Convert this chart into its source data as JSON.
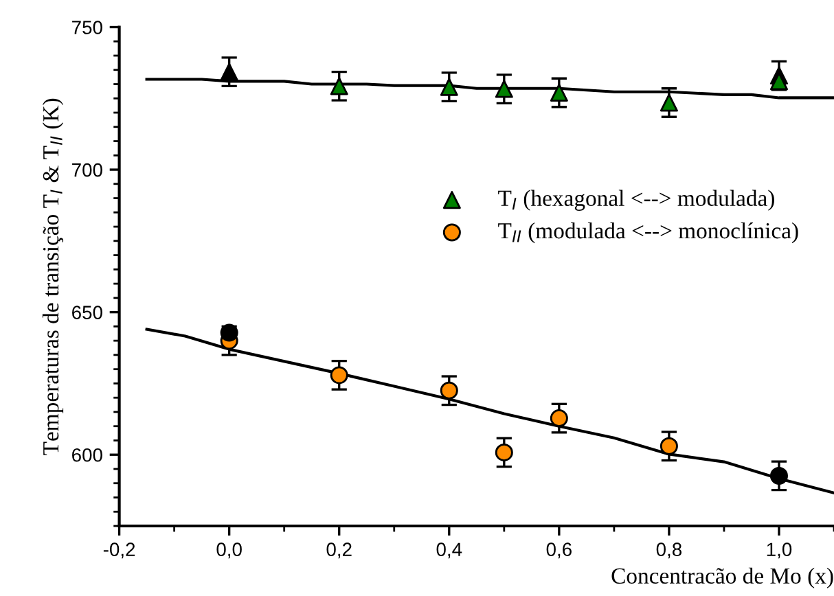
{
  "chart_data": {
    "type": "scatter",
    "xlabel": "Concentracão de Mo (x)",
    "ylabel": "Temperaturas de transição T$_{I}$ & T$_{II}$ (K)",
    "xlim": [
      -0.2,
      1.1
    ],
    "xticks": [
      {
        "value": -0.2,
        "label": "-0,2"
      },
      {
        "value": 0.0,
        "label": "0,0"
      },
      {
        "value": 0.2,
        "label": "0,2"
      },
      {
        "value": 0.4,
        "label": "0,4"
      },
      {
        "value": 0.6,
        "label": "0,6"
      },
      {
        "value": 0.8,
        "label": "0,8"
      },
      {
        "value": 1.0,
        "label": "1,0"
      }
    ],
    "ylim": [
      575,
      750
    ],
    "yticks": [
      600,
      650,
      700,
      750
    ],
    "grid": false,
    "legend": "right",
    "series": [
      {
        "type": "line",
        "color": "#000000",
        "marker": "none",
        "line_style": "solid",
        "x": [
          -0.15,
          -0.05,
          0.0,
          0.1,
          0.15,
          0.25,
          0.3,
          0.4,
          0.45,
          0.6,
          0.7,
          0.8,
          0.9,
          0.95,
          1.0,
          1.1
        ],
        "values": [
          731.7,
          731.7,
          731,
          731,
          730,
          730,
          729.5,
          729.5,
          728.5,
          728.5,
          727.3,
          727.3,
          726.3,
          726.3,
          725.2,
          725.2
        ]
      },
      {
        "type": "line",
        "color": "#000000",
        "marker": "none",
        "line_style": "solid",
        "x": [
          -0.15,
          -0.08,
          0.0,
          0.2,
          0.3,
          0.4,
          0.5,
          0.6,
          0.7,
          0.8,
          0.9,
          1.0,
          1.1
        ],
        "values": [
          644,
          641.6,
          637,
          628.5,
          624,
          619.5,
          614.4,
          610,
          605.9,
          600.2,
          597.5,
          591.6,
          586.6
        ]
      },
      {
        "color": "#000000",
        "marker": "triangle",
        "x": [
          0.0,
          1.0
        ],
        "values": [
          734.3,
          733
        ],
        "errors": [
          5,
          5
        ]
      },
      {
        "name": "T$_{I}$ (hexagonal <--> modulada)",
        "color": "#008000",
        "marker": "triangle",
        "x": [
          0.2,
          0.4,
          0.5,
          0.6,
          0.8,
          1.0
        ],
        "values": [
          729.3,
          729,
          728.3,
          727,
          723.5,
          731
        ],
        "errors": [
          5,
          5,
          5,
          5,
          5,
          null
        ]
      },
      {
        "name": "T$_{II}$ (modulada <--> monoclínica)",
        "color": "#ff8c00",
        "marker": "circle",
        "x": [
          0.0,
          0.2,
          0.4,
          0.5,
          0.6,
          0.8
        ],
        "values": [
          640,
          627.9,
          622.5,
          600.8,
          612.8,
          603
        ],
        "errors": [
          5,
          5,
          5,
          5,
          5,
          5
        ]
      },
      {
        "color": "#000000",
        "marker": "circle",
        "x": [
          0.0,
          1.0
        ],
        "values": [
          642.8,
          592.6
        ],
        "errors": [
          null,
          5
        ]
      }
    ]
  }
}
